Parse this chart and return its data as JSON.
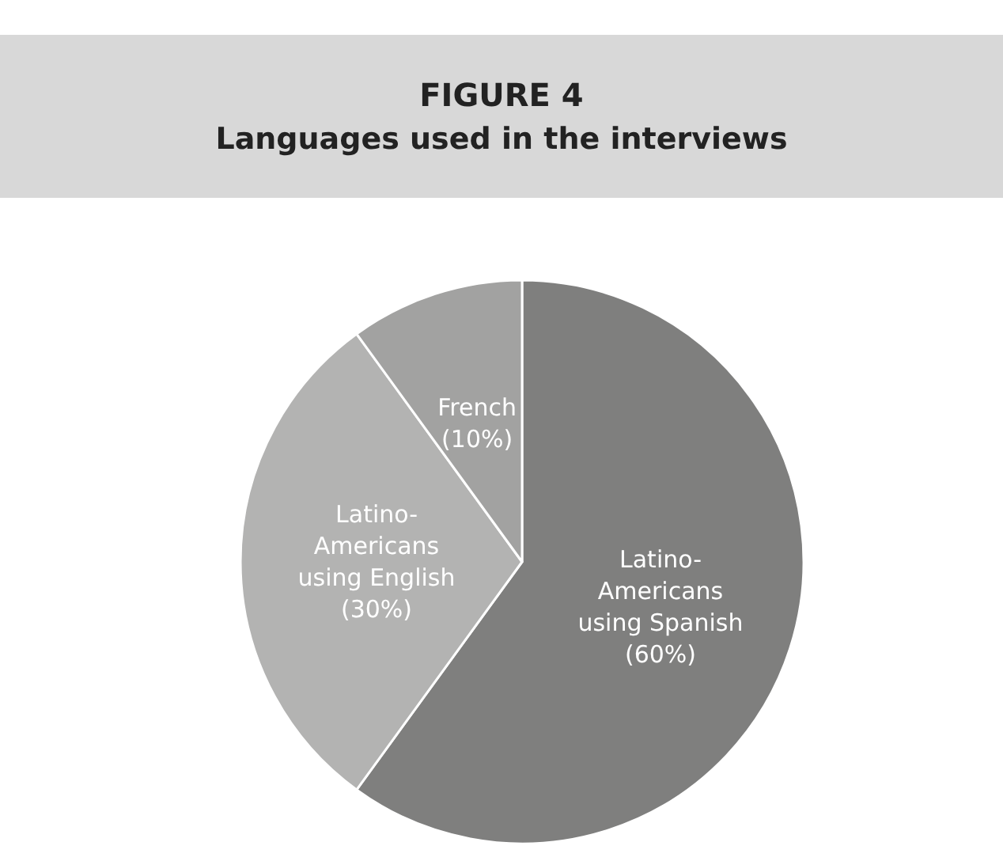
{
  "chart_data": {
    "type": "pie",
    "title": "FIGURE 4",
    "subtitle": "Languages used in the interviews",
    "categories": [
      "Latino-Americans using Spanish",
      "Latino-Americans using English",
      "French"
    ],
    "values": [
      60,
      30,
      10
    ],
    "value_labels": [
      "(60%)",
      "(30%)",
      "(10%)"
    ],
    "colors": [
      "#7f7f7e",
      "#b3b3b2",
      "#a2a2a1"
    ],
    "legend": false
  }
}
